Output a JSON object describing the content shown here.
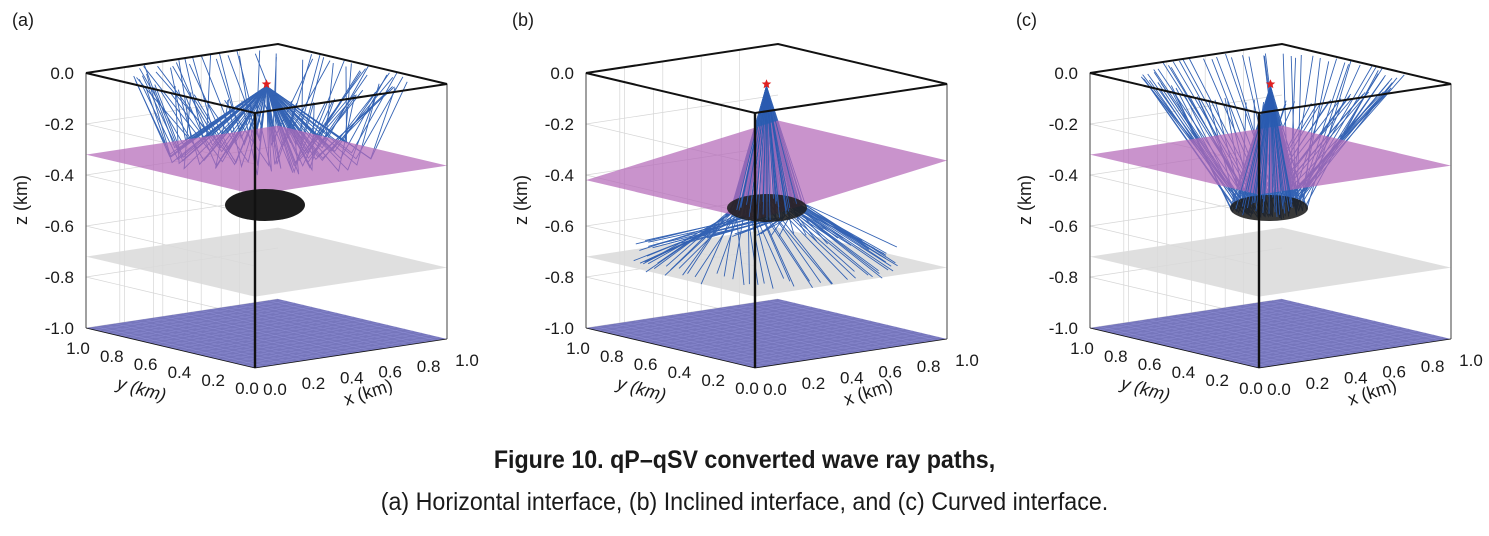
{
  "panels": [
    {
      "id": "a",
      "label": "(a)",
      "interface": "horizontal",
      "z_axis_label": "z (km)",
      "z_ticks": [
        "0.0",
        "-0.2",
        "-0.4",
        "-0.6",
        "-0.8",
        "-1.0"
      ],
      "y_axis_label": "y (km)",
      "y_ticks": [
        "1.0",
        "0.8",
        "0.6",
        "0.4",
        "0.2",
        "0.0"
      ],
      "x_axis_label": "x (km)",
      "x_ticks": [
        "0.0",
        "0.2",
        "0.4",
        "0.6",
        "0.8",
        "1.0"
      ]
    },
    {
      "id": "b",
      "label": "(b)",
      "interface": "inclined",
      "z_axis_label": "z (km)",
      "z_ticks": [
        "0.0",
        "-0.2",
        "-0.4",
        "-0.6",
        "-0.8",
        "-1.0"
      ],
      "y_axis_label": "y (km)",
      "y_ticks": [
        "1.0",
        "0.8",
        "0.6",
        "0.4",
        "0.2",
        "0.0"
      ],
      "x_axis_label": "x (km)",
      "x_ticks": [
        "0.0",
        "0.2",
        "0.4",
        "0.6",
        "0.8",
        "1.0"
      ]
    },
    {
      "id": "c",
      "label": "(c)",
      "interface": "curved",
      "z_axis_label": "z (km)",
      "z_ticks": [
        "0.0",
        "-0.2",
        "-0.4",
        "-0.6",
        "-0.8",
        "-1.0"
      ],
      "y_axis_label": "y (km)",
      "y_ticks": [
        "1.0",
        "0.8",
        "0.6",
        "0.4",
        "0.2",
        "0.0"
      ],
      "x_axis_label": "x (km)",
      "x_ticks": [
        "0.0",
        "0.2",
        "0.4",
        "0.6",
        "0.8",
        "1.0"
      ]
    }
  ],
  "colors": {
    "ray": "#2a5bb0",
    "interface_plane": "#b46ab8",
    "bottom_plane": "#6f6fb8",
    "lower_plane": "#d9d9d9",
    "ellipse": "#1c1c1c",
    "source_star": "#e02020",
    "box": "#111111",
    "grid": "#d6d6d6"
  },
  "caption": {
    "title": "Figure 10. qP–qSV converted wave ray paths,",
    "subtitle": "(a) Horizontal interface, (b) Inclined interface, and (c) Curved interface."
  }
}
